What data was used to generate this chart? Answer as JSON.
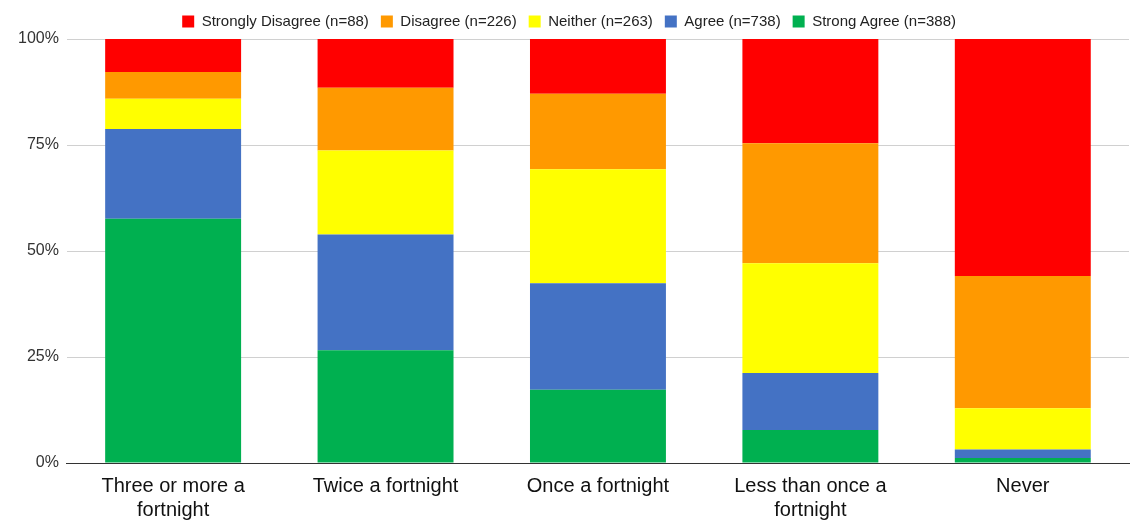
{
  "chart_data": {
    "type": "bar",
    "stacked": true,
    "categories": [
      "Three or more a fortnight",
      "Twice a fortnight",
      "Once a fortnight",
      "Less than once a fortnight",
      "Never"
    ],
    "series": [
      {
        "name": "Strong Agree (n=388)",
        "color": "#00b050",
        "values": [
          57.6,
          26.6,
          17.3,
          7.8,
          1.2
        ]
      },
      {
        "name": "Agree (n=738)",
        "color": "#4472c4",
        "values": [
          21.2,
          27.3,
          25.1,
          13.4,
          2.0
        ]
      },
      {
        "name": "Neither (n=263)",
        "color": "#ffff00",
        "values": [
          7.1,
          19.8,
          26.9,
          25.9,
          9.7
        ]
      },
      {
        "name": "Disagree (n=226)",
        "color": "#ff9900",
        "values": [
          6.3,
          14.8,
          17.8,
          28.3,
          31.2
        ]
      },
      {
        "name": "Strongly Disagree (n=88)",
        "color": "#ff0000",
        "values": [
          7.8,
          11.5,
          12.9,
          24.6,
          55.9
        ]
      }
    ],
    "ylim": [
      0,
      100
    ],
    "yticks": [
      {
        "value": 0,
        "label": "0%"
      },
      {
        "value": 25,
        "label": "25%"
      },
      {
        "value": 50,
        "label": "50%"
      },
      {
        "value": 75,
        "label": "75%"
      },
      {
        "value": 100,
        "label": "100%"
      }
    ],
    "grid": "y",
    "legend": "top"
  }
}
